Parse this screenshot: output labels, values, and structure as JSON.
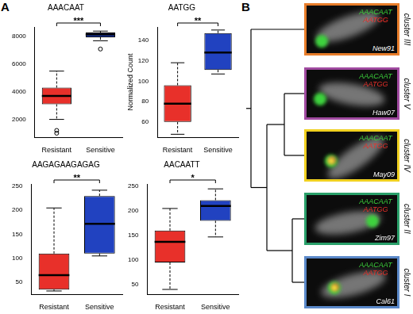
{
  "panel_labels": [
    "A",
    "B"
  ],
  "chart_data": [
    {
      "type": "boxplot",
      "title": "AAACAAT",
      "categories": [
        "Resistant",
        "Sensitive"
      ],
      "colors": [
        "#e8302a",
        "#2142c0"
      ],
      "boxes": [
        {
          "min": 2000,
          "q1": 3100,
          "median": 3700,
          "q3": 4300,
          "max": 5500,
          "outliers": [
            1200,
            1000
          ]
        },
        {
          "min": 7700,
          "q1": 7950,
          "median": 8150,
          "q3": 8300,
          "max": 8400,
          "outliers": [
            7100
          ]
        }
      ],
      "ylim": [
        700,
        8700
      ],
      "yticks": [
        2000,
        4000,
        6000,
        8000
      ],
      "grid": false,
      "significance": "***"
    },
    {
      "type": "boxplot",
      "title": "AATGG",
      "y_label": "Normalized Count",
      "categories": [
        "Resistant",
        "Sensitive"
      ],
      "colors": [
        "#e8302a",
        "#2142c0"
      ],
      "boxes": [
        {
          "min": 48,
          "q1": 60,
          "median": 78,
          "q3": 96,
          "max": 118,
          "outliers": []
        },
        {
          "min": 107,
          "q1": 111,
          "median": 128,
          "q3": 147,
          "max": 150,
          "outliers": []
        }
      ],
      "ylim": [
        45,
        153
      ],
      "yticks": [
        60,
        80,
        100,
        120,
        140
      ],
      "grid": false,
      "significance": "**"
    },
    {
      "type": "boxplot",
      "title": "AAGAGAAGAGAG",
      "categories": [
        "Resistant",
        "Sensitive"
      ],
      "colors": [
        "#e8302a",
        "#2142c0"
      ],
      "boxes": [
        {
          "min": 32,
          "q1": 35,
          "median": 65,
          "q3": 110,
          "max": 205,
          "outliers": []
        },
        {
          "min": 105,
          "q1": 110,
          "median": 172,
          "q3": 230,
          "max": 242,
          "outliers": []
        }
      ],
      "ylim": [
        25,
        255
      ],
      "yticks": [
        50,
        100,
        150,
        200,
        250
      ],
      "grid": false,
      "significance": "**"
    },
    {
      "type": "boxplot",
      "title": "AACAATT",
      "categories": [
        "Resistant",
        "Sensitive"
      ],
      "colors": [
        "#e8302a",
        "#2142c0"
      ],
      "boxes": [
        {
          "min": 40,
          "q1": 95,
          "median": 137,
          "q3": 160,
          "max": 205,
          "outliers": []
        },
        {
          "min": 147,
          "q1": 180,
          "median": 210,
          "q3": 222,
          "max": 245,
          "outliers": []
        }
      ],
      "ylim": [
        30,
        255
      ],
      "yticks": [
        50,
        100,
        150,
        200,
        250
      ],
      "grid": false,
      "significance": "*"
    }
  ],
  "dendrogram": {
    "probes": [
      {
        "name": "AAACAAT",
        "color": "#3cd23c"
      },
      {
        "name": "AATGG",
        "color": "#e8302a"
      }
    ],
    "leaves": [
      {
        "sample": "New91",
        "cluster": "cluster III",
        "color": "#e87d2a"
      },
      {
        "sample": "Haw07",
        "cluster": "cluster V",
        "color": "#a04aa0"
      },
      {
        "sample": "May09",
        "cluster": "cluster IV",
        "color": "#f0d020"
      },
      {
        "sample": "Zim97",
        "cluster": "cluster II",
        "color": "#2aa06a"
      },
      {
        "sample": "Cal61",
        "cluster": "cluster I",
        "color": "#5a88c8"
      }
    ]
  }
}
